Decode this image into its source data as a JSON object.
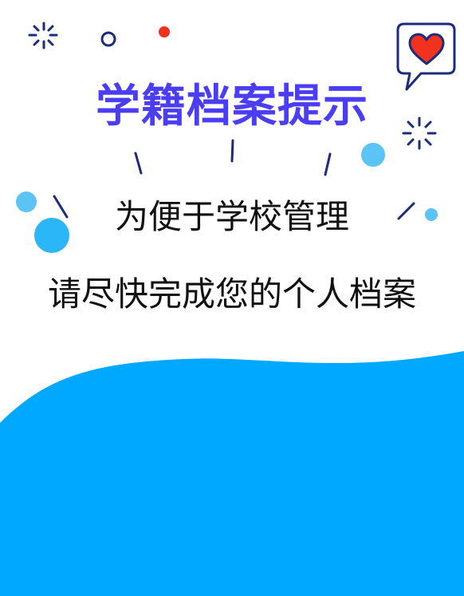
{
  "title": "学籍档案提示",
  "message": {
    "line1": "为便于学校管理",
    "line2": "请尽快完成您的个人档案"
  },
  "colors": {
    "title": "#4a3df2",
    "accent_wave": "#00a9ff",
    "dot_light": "#5cc3f5",
    "dot_red": "#f0321e",
    "heart": "#f0321e",
    "sparkle": "#1c2b7a",
    "text": "#111111"
  },
  "icons": [
    "sparkle-icon",
    "ring-icon",
    "dot-icon",
    "heart-speech-bubble-icon"
  ]
}
